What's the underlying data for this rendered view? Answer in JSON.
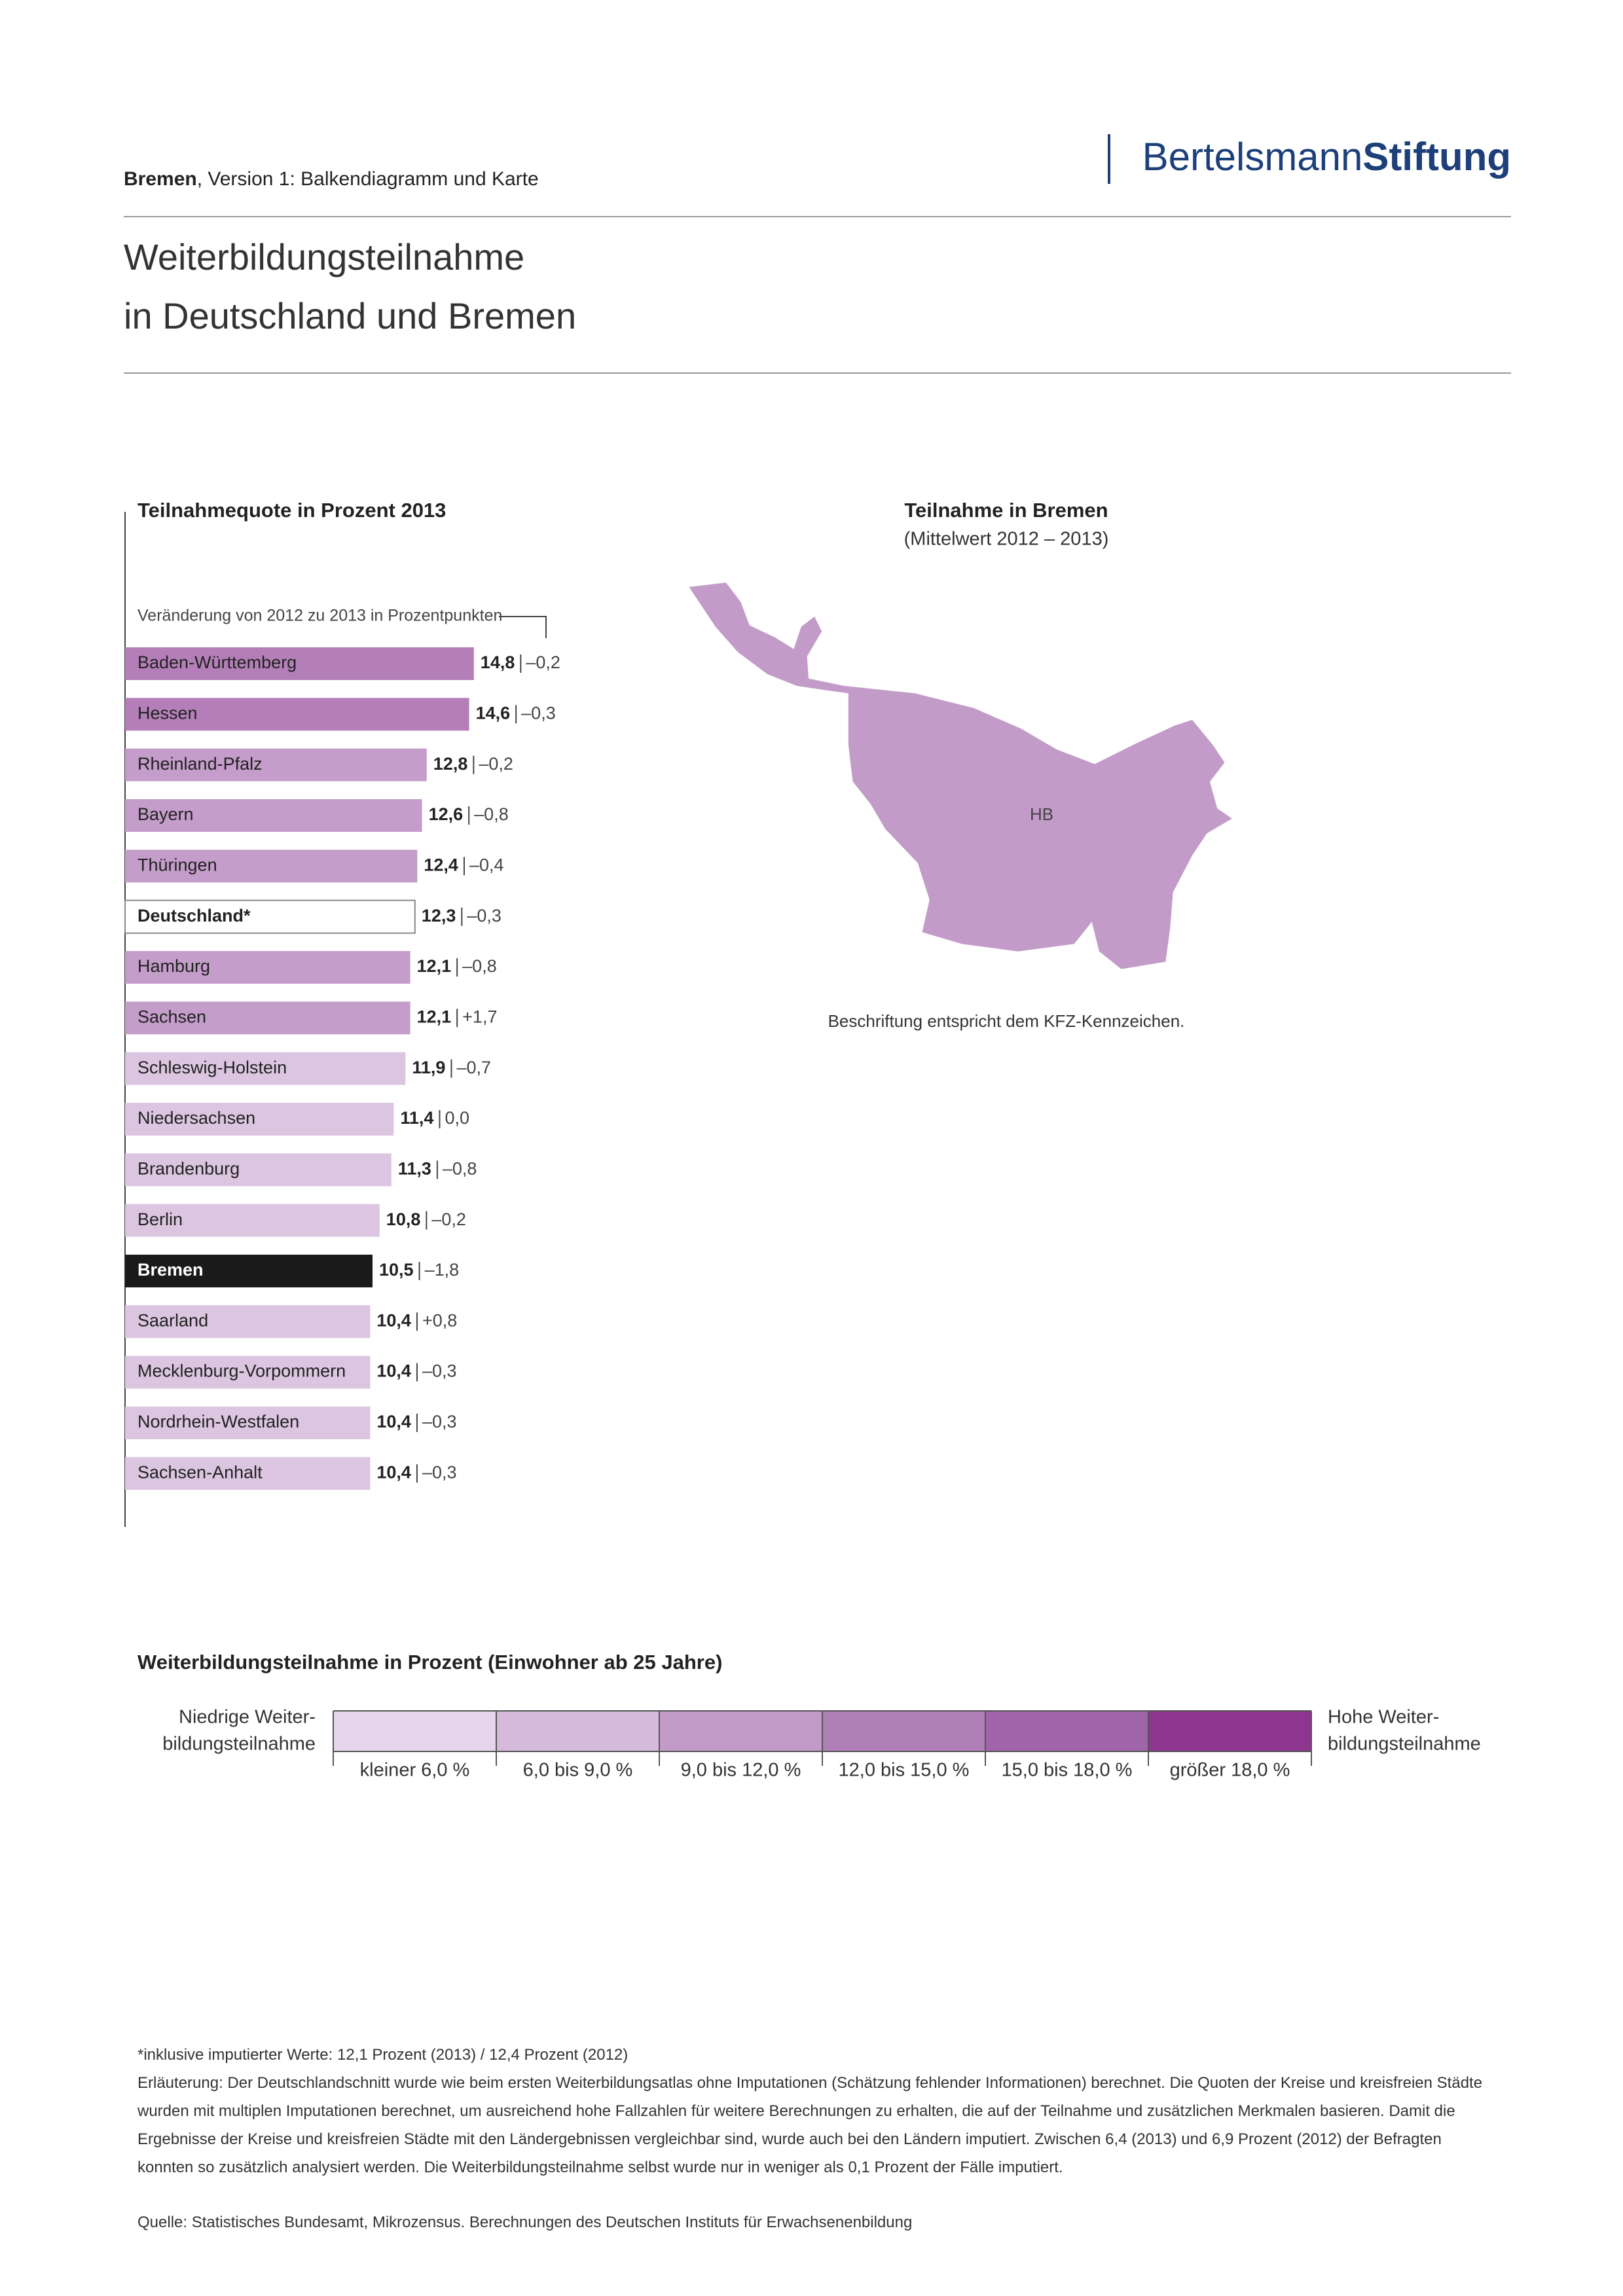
{
  "header": {
    "report": "Bremen",
    "subtitle": ", Version 1: Balkendiagramm und Karte",
    "logo_light": "Bertelsmann",
    "logo_bold": "Stiftung"
  },
  "title": [
    "Weiterbildungsteilnahme",
    "in Deutschland und Bremen"
  ],
  "chart_data": {
    "type": "bar",
    "orientation": "horizontal",
    "title": "Teilnahmequote in Prozent 2013",
    "change_note": "Veränderung von 2012 zu 2013 in Prozentpunkten",
    "categories": [
      "Baden-Württemberg",
      "Hessen",
      "Rheinland-Pfalz",
      "Bayern",
      "Thüringen",
      "Deutschland*",
      "Hamburg",
      "Sachsen",
      "Schleswig-Holstein",
      "Niedersachsen",
      "Brandenburg",
      "Berlin",
      "Bremen",
      "Saarland",
      "Mecklenburg-Vorpommern",
      "Nordrhein-Westfalen",
      "Sachsen-Anhalt"
    ],
    "values": [
      14.8,
      14.6,
      12.8,
      12.6,
      12.4,
      12.3,
      12.1,
      12.1,
      11.9,
      11.4,
      11.3,
      10.8,
      10.5,
      10.4,
      10.4,
      10.4,
      10.4
    ],
    "value_labels": [
      "14,8",
      "14,6",
      "12,8",
      "12,6",
      "12,4",
      "12,3",
      "12,1",
      "12,1",
      "11,9",
      "11,4",
      "11,3",
      "10,8",
      "10,5",
      "10,4",
      "10,4",
      "10,4",
      "10,4"
    ],
    "changes": [
      -0.2,
      -0.3,
      -0.2,
      -0.8,
      -0.4,
      -0.3,
      -0.8,
      1.7,
      -0.7,
      0,
      -0.8,
      -0.2,
      -1.8,
      0.8,
      -0.3,
      -0.3,
      -0.3
    ],
    "change_labels": [
      "–0,2",
      "–0,3",
      "–0,2",
      "–0,8",
      "–0,4",
      "–0,3",
      "–0,8",
      "+1,7",
      "–0,7",
      "0,0",
      "–0,8",
      "–0,2",
      "–1,8",
      "+0,8",
      "–0,3",
      "–0,3",
      "–0,3"
    ],
    "colors": [
      "#b47fb8",
      "#b47fb8",
      "#c49dca",
      "#c49dca",
      "#c49dca",
      "#ffffff",
      "#c49dca",
      "#c49dca",
      "#dbc5e0",
      "#dbc5e0",
      "#dbc5e0",
      "#dbc5e0",
      "#1a1a1a",
      "#dbc5e0",
      "#dbc5e0",
      "#dbc5e0",
      "#dbc5e0"
    ]
  },
  "map": {
    "title": "Teilnahme in Bremen",
    "subtitle": "(Mittelwert 2012 – 2013)",
    "label": "HB",
    "color": "#c39bc9",
    "note": "Beschriftung entspricht dem KFZ-Kennzeichen."
  },
  "legend": {
    "title": "Weiterbildungsteilnahme in Prozent (Einwohner ab 25 Jahre)",
    "low": [
      "Niedrige Weiter-",
      "bildungsteilnahme"
    ],
    "high": [
      "Hohe Weiter-",
      "bildungsteilnahme"
    ],
    "classes": [
      {
        "label": "kleiner 6,0 %",
        "color": "#e6d5ea"
      },
      {
        "label": "6,0 bis 9,0 %",
        "color": "#d5badc"
      },
      {
        "label": "9,0 bis 12,0 %",
        "color": "#c39bc9"
      },
      {
        "label": "12,0 bis 15,0 %",
        "color": "#b07fb7"
      },
      {
        "label": "15,0 bis 18,0 %",
        "color": "#a064a8"
      },
      {
        "label": "größer 18,0 %",
        "color": "#8e3590"
      }
    ]
  },
  "footnotes": {
    "asterisk": "*inklusive imputierter Werte: 12,1 Prozent (2013) / 12,4 Prozent (2012)",
    "explanation": "Erläuterung: Der Deutschlandschnitt wurde wie beim ersten Weiterbildungsatlas ohne Imputationen (Schätzung fehlender Informationen) berechnet. Die Quoten der Kreise und kreisfreien Städte wurden mit multiplen Imputationen berechnet, um ausreichend hohe Fallzahlen für weitere Berechnungen zu erhalten, die auf der Teilnahme und zusätzlichen Merkmalen basieren. Damit die Ergebnisse der Kreise und kreisfreien Städte mit den Ländergebnissen vergleichbar sind, wurde auch bei den Ländern imputiert. Zwischen 6,4 (2013) und 6,9 Prozent (2012) der Befragten konnten so zusätzlich analysiert werden. Die Weiterbildungsteilnahme selbst wurde nur in weniger als 0,1 Prozent der Fälle imputiert.",
    "source": "Quelle: Statistisches Bundesamt, Mikrozensus. Berechnungen des Deutschen Instituts für Erwachsenenbildung"
  }
}
